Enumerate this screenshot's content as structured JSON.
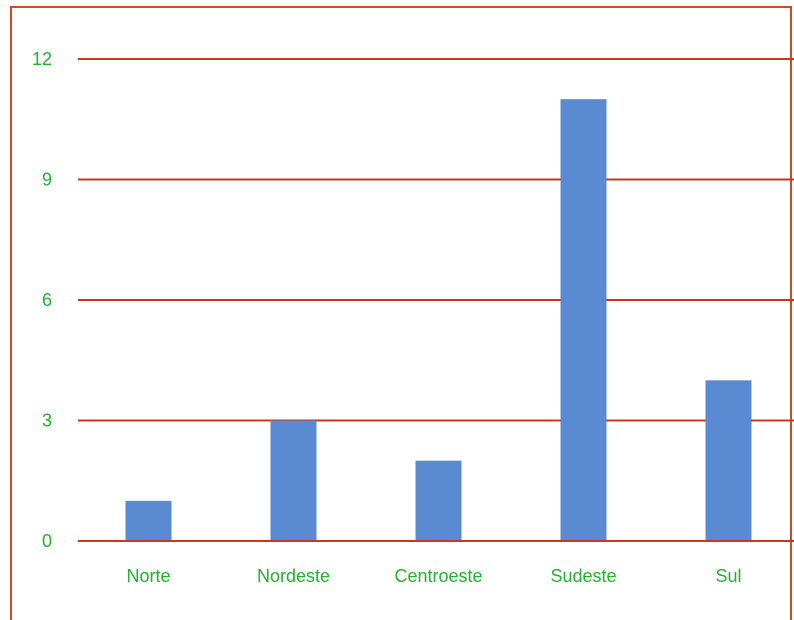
{
  "colors": {
    "frame": "#d44a1a",
    "gridline": "#c8391c",
    "bar": "#5a8bd2",
    "label_text": "#22b22f"
  },
  "chart_data": {
    "type": "bar",
    "categories": [
      "Norte",
      "Nordeste",
      "Centroeste",
      "Sudeste",
      "Sul"
    ],
    "values": [
      1,
      3,
      2,
      11,
      4
    ],
    "yticks": [
      "0",
      "3",
      "6",
      "9",
      "12"
    ],
    "ylim": [
      0,
      12
    ],
    "grid": true,
    "legend": "none",
    "title": "",
    "xlabel": "",
    "ylabel": ""
  }
}
